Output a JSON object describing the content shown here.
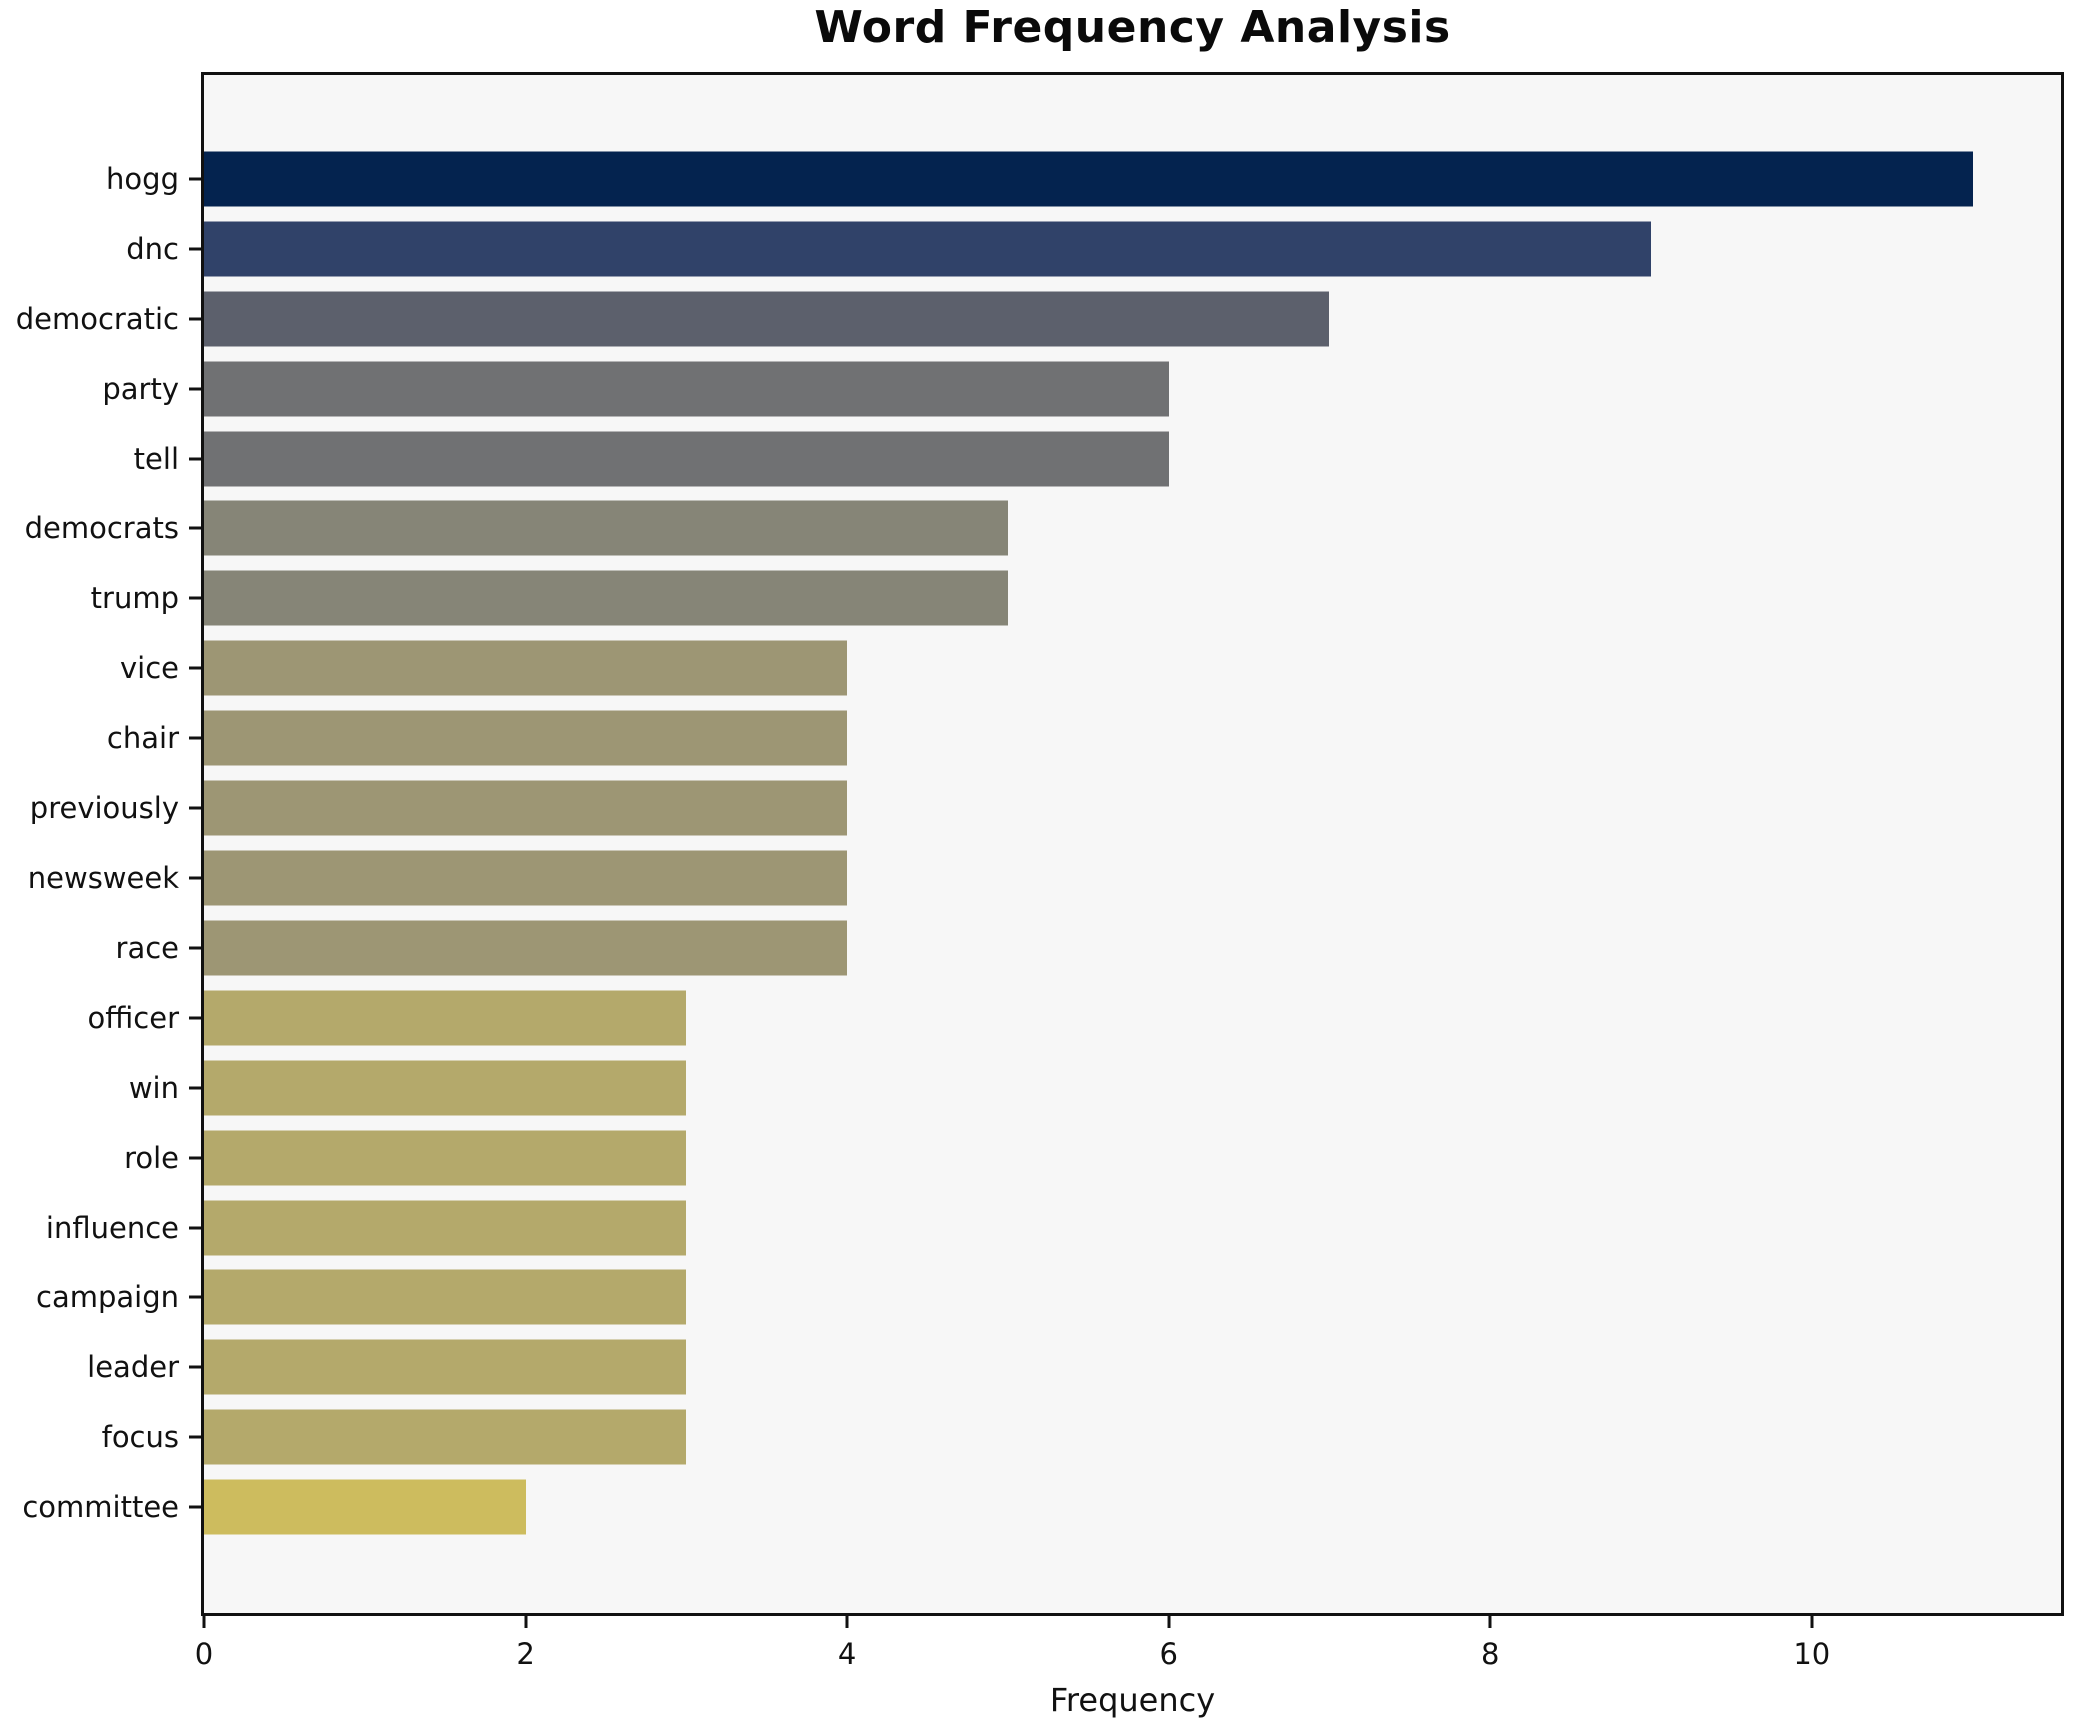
{
  "title": "Word Frequency Analysis",
  "xlabel": "Frequency",
  "chart_data": {
    "type": "bar",
    "orientation": "horizontal",
    "title": "Word Frequency Analysis",
    "xlabel": "Frequency",
    "ylabel": "",
    "categories": [
      "hogg",
      "dnc",
      "democratic",
      "party",
      "tell",
      "democrats",
      "trump",
      "vice",
      "chair",
      "previously",
      "newsweek",
      "race",
      "officer",
      "win",
      "role",
      "influence",
      "campaign",
      "leader",
      "focus",
      "committee"
    ],
    "values": [
      11,
      9,
      7,
      6,
      6,
      5,
      5,
      4,
      4,
      4,
      4,
      4,
      3,
      3,
      3,
      3,
      3,
      3,
      3,
      2
    ],
    "bar_colors": [
      "#04234f",
      "#304269",
      "#5c606c",
      "#707173",
      "#707173",
      "#868577",
      "#868577",
      "#9d9674",
      "#9d9674",
      "#9d9674",
      "#9d9674",
      "#9d9674",
      "#b4a96b",
      "#b4a96b",
      "#b4a96b",
      "#b4a96b",
      "#b4a96b",
      "#b4a96b",
      "#b4a96b",
      "#cdbc5e"
    ],
    "xlim": [
      0,
      11.55
    ],
    "xticks": [
      0,
      2,
      4,
      6,
      8,
      10
    ],
    "grid": false,
    "legend": "none",
    "plot_background": "#f7f7f7",
    "figure_background": "#ffffff",
    "spine_color": "#111111"
  }
}
